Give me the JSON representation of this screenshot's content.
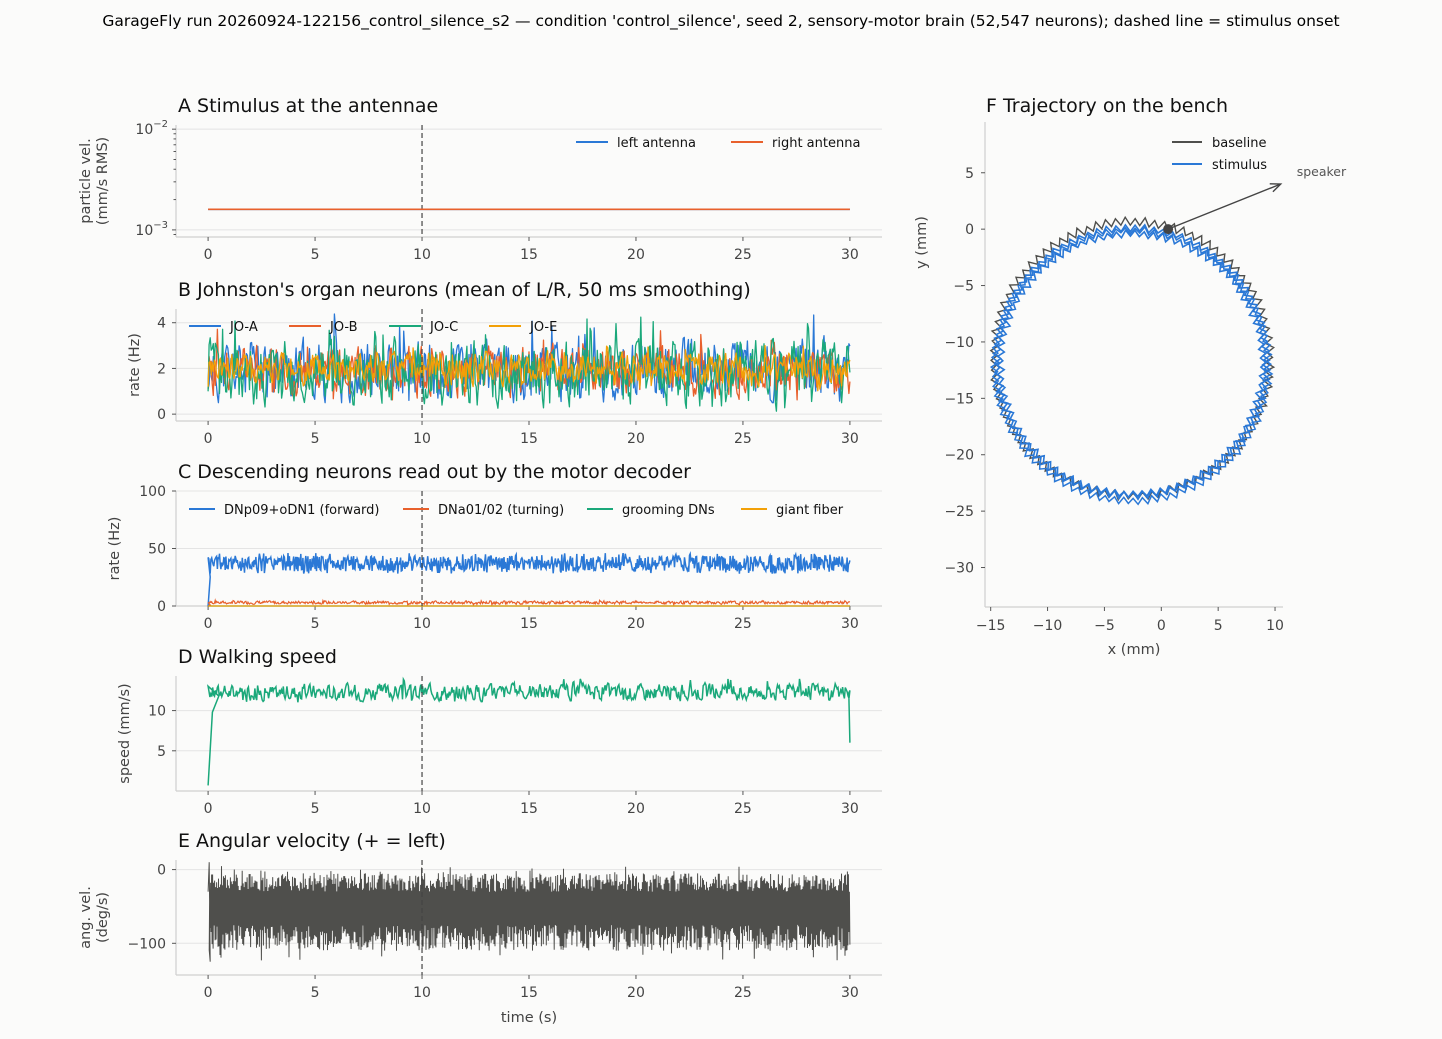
{
  "figure": {
    "suptitle": "GarageFly run 20260924-122156_control_silence_s2 — condition 'control_silence', seed 2, sensory-motor brain (52,547 neurons); dashed line = stimulus onset"
  },
  "colors": {
    "blue": "#2a78d6",
    "orange": "#e8602c",
    "green": "#1aa87a",
    "amber": "#f2a007",
    "dark": "#4f4f4c",
    "onset": "#444444"
  },
  "chart_data": [
    {
      "panel": "A",
      "type": "line",
      "title": "A  Stimulus at the antennae",
      "xlabel": "",
      "ylabel_lines": [
        "particle vel.",
        "(mm/s RMS)"
      ],
      "yscale": "log",
      "xlim": [
        -1.5,
        31.5
      ],
      "ylim": [
        0.00085,
        0.011
      ],
      "xticks": [
        0,
        5,
        10,
        15,
        20,
        25,
        30
      ],
      "yticks": [
        0.001,
        0.01
      ],
      "ytick_labels": [
        {
          "base": "10",
          "exp": "−3"
        },
        {
          "base": "10",
          "exp": "−2"
        }
      ],
      "onset_x": 10,
      "legend": "top-right",
      "series": [
        {
          "name": "left antenna",
          "color": "blue",
          "x": [
            0,
            30
          ],
          "y": [
            0.0016,
            0.0016
          ]
        },
        {
          "name": "right antenna",
          "color": "orange",
          "x": [
            0,
            30
          ],
          "y": [
            0.0016,
            0.0016
          ]
        }
      ]
    },
    {
      "panel": "B",
      "type": "line",
      "title": "B  Johnston's organ neurons (mean of L/R, 50 ms smoothing)",
      "xlabel": "",
      "ylabel": "rate (Hz)",
      "xlim": [
        -1.5,
        31.5
      ],
      "ylim": [
        -0.3,
        4.6
      ],
      "xticks": [
        0,
        5,
        10,
        15,
        20,
        25,
        30
      ],
      "yticks": [
        0,
        2,
        4
      ],
      "onset_x": 10,
      "legend": "top-left",
      "series": [
        {
          "name": "JO-A",
          "color": "blue",
          "mean": 1.9,
          "range": [
            0.5,
            4.4
          ],
          "seed": 11
        },
        {
          "name": "JO-B",
          "color": "orange",
          "mean": 1.9,
          "range": [
            0.6,
            3.8
          ],
          "seed": 23
        },
        {
          "name": "JO-C",
          "color": "green",
          "mean": 1.8,
          "range": [
            0.1,
            4.3
          ],
          "seed": 37
        },
        {
          "name": "JO-E",
          "color": "amber",
          "mean": 2.0,
          "range": [
            0.9,
            3.0
          ],
          "seed": 41
        }
      ]
    },
    {
      "panel": "C",
      "type": "line",
      "title": "C  Descending neurons read out by the motor decoder",
      "xlabel": "",
      "ylabel": "rate (Hz)",
      "xlim": [
        -1.5,
        31.5
      ],
      "ylim": [
        0,
        100
      ],
      "xticks": [
        0,
        5,
        10,
        15,
        20,
        25,
        30
      ],
      "yticks": [
        0,
        50,
        100
      ],
      "onset_x": 10,
      "legend": "top",
      "series": [
        {
          "name": "DNp09+oDN1 (forward)",
          "color": "blue",
          "mean": 37,
          "range": [
            28,
            46
          ],
          "seed": 5
        },
        {
          "name": "DNa01/02 (turning)",
          "color": "orange",
          "mean": 3,
          "range": [
            1,
            5
          ],
          "seed": 7
        },
        {
          "name": "grooming DNs",
          "color": "green",
          "mean": 0,
          "range": [
            0,
            0
          ],
          "seed": 9
        },
        {
          "name": "giant fiber",
          "color": "amber",
          "mean": 0,
          "range": [
            0,
            0
          ],
          "seed": 13
        }
      ]
    },
    {
      "panel": "D",
      "type": "line",
      "title": "D  Walking speed",
      "xlabel": "",
      "ylabel": "speed (mm/s)",
      "xlim": [
        -1.5,
        31.5
      ],
      "ylim": [
        0,
        14.3
      ],
      "xticks": [
        0,
        5,
        10,
        15,
        20,
        25,
        30
      ],
      "yticks": [
        5,
        10
      ],
      "onset_x": 10,
      "series": [
        {
          "name": "",
          "color": "green",
          "start": 0.7,
          "mean": 12.3,
          "range": [
            11.0,
            14.0
          ],
          "end": 6.0,
          "seed": 17
        }
      ]
    },
    {
      "panel": "E",
      "type": "line",
      "title": "E  Angular velocity (+ = left)",
      "xlabel": "time (s)",
      "ylabel_lines": [
        "ang. vel.",
        "(deg/s)"
      ],
      "xlim": [
        -1.5,
        31.5
      ],
      "ylim": [
        -143,
        13
      ],
      "xticks": [
        0,
        5,
        10,
        15,
        20,
        25,
        30
      ],
      "yticks": [
        -100,
        0
      ],
      "ytick_labels": [
        "−100",
        "0"
      ],
      "onset_x": 10,
      "series": [
        {
          "name": "",
          "color": "dark",
          "mean": -45,
          "range": [
            -125,
            10
          ],
          "seed": 29
        }
      ]
    },
    {
      "panel": "F",
      "type": "line",
      "title": "F  Trajectory on the bench",
      "xlabel": "x (mm)",
      "ylabel": "y (mm)",
      "xlim": [
        -15.5,
        10.7
      ],
      "ylim": [
        -33.5,
        9.5
      ],
      "xticks": [
        -15,
        -10,
        -5,
        0,
        5,
        10
      ],
      "xtick_labels": [
        "−15",
        "−10",
        "−5",
        "0",
        "5",
        "10"
      ],
      "yticks": [
        -30,
        -25,
        -20,
        -15,
        -10,
        -5,
        0,
        5
      ],
      "ytick_labels": [
        "−30",
        "−25",
        "−20",
        "−15",
        "−10",
        "−5",
        "0",
        "5"
      ],
      "legend": "top-right",
      "circle": {
        "cx": -2.6,
        "cy": -11.6,
        "r": 11.9
      },
      "start_point": [
        0.6,
        0
      ],
      "annotation": {
        "text": "speaker",
        "arrow_from": [
          0.6,
          0
        ],
        "arrow_to": [
          10.5,
          4.0
        ]
      },
      "series": [
        {
          "name": "baseline",
          "color": "dark"
        },
        {
          "name": "stimulus",
          "color": "blue"
        }
      ]
    }
  ]
}
